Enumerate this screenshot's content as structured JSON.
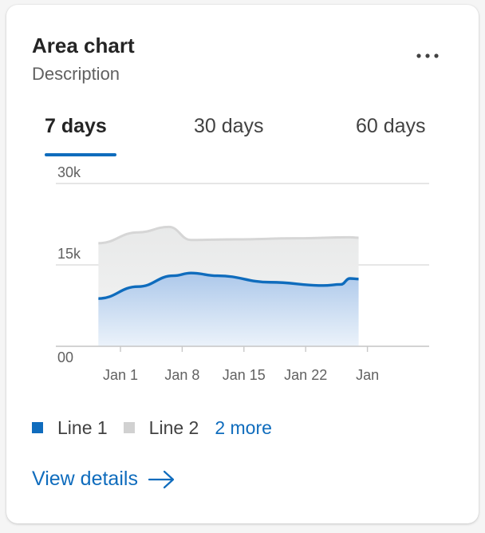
{
  "card": {
    "title": "Area chart",
    "description": "Description",
    "more_icon": "more-horizontal-icon"
  },
  "tabs": [
    {
      "label": "7 days",
      "active": true
    },
    {
      "label": "30 days",
      "active": false
    },
    {
      "label": "60 days",
      "active": false
    }
  ],
  "legend": {
    "items": [
      {
        "label": "Line 1",
        "color": "#0f6cbd"
      },
      {
        "label": "Line 2",
        "color": "#d1d1d1"
      }
    ],
    "more_label": "2 more"
  },
  "footer": {
    "view_details_label": "View details",
    "arrow_icon": "arrow-right-icon"
  },
  "colors": {
    "accent": "#0f6cbd",
    "line2": "#d1d1d1"
  },
  "chart_data": {
    "type": "area",
    "x_ticks": [
      "Jan 1",
      "Jan 8",
      "Jan 15",
      "Jan 22",
      "Jan"
    ],
    "y_ticks": [
      "00",
      "15k",
      "30k"
    ],
    "ylim": [
      0,
      30000
    ],
    "grid": true,
    "series": [
      {
        "name": "Line 2",
        "color": "#d1d1d1",
        "points": [
          [
            -2.5,
            19000
          ],
          [
            2,
            21000
          ],
          [
            5.5,
            22000
          ],
          [
            8,
            19600
          ],
          [
            13,
            19700
          ],
          [
            20,
            19900
          ],
          [
            26,
            20100
          ],
          [
            27,
            20000
          ]
        ]
      },
      {
        "name": "Line 1",
        "color": "#0f6cbd",
        "points": [
          [
            -2.5,
            8800
          ],
          [
            2,
            11000
          ],
          [
            6,
            13000
          ],
          [
            8,
            13500
          ],
          [
            11,
            13000
          ],
          [
            17,
            11800
          ],
          [
            23,
            11200
          ],
          [
            25,
            11400
          ],
          [
            26,
            12500
          ],
          [
            27,
            12400
          ]
        ]
      }
    ]
  }
}
